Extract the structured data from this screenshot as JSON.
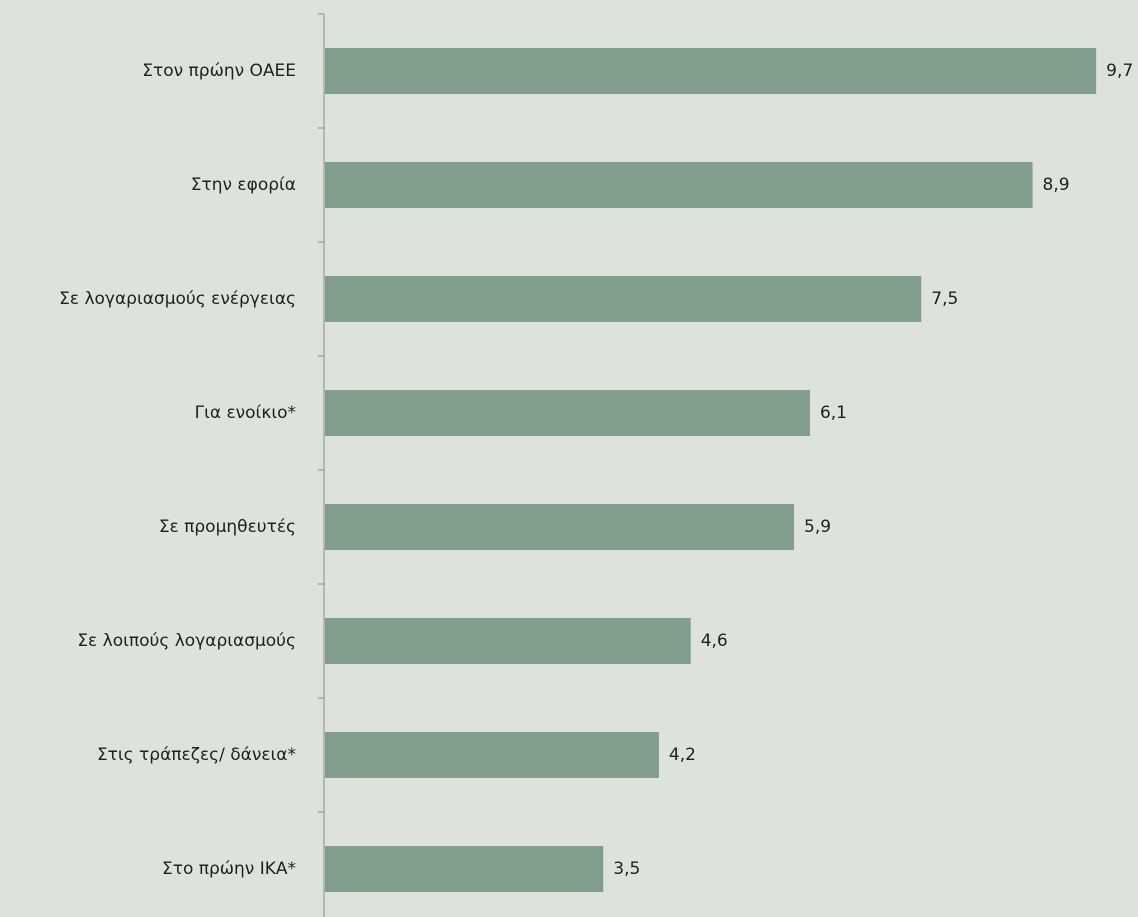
{
  "chart_data": {
    "type": "bar",
    "orientation": "horizontal",
    "categories": [
      "Στον πρώην ΟΑΕΕ",
      "Στην εφορία",
      "Σε λογαριασμούς  ενέργειας",
      "Για ενοίκιο*",
      "Σε προμηθευτές",
      "Σε λοιπούς λογαριασμούς",
      "Στις τράπεζες/ δάνεια*",
      "Στο πρώην ΙΚΑ*"
    ],
    "values": [
      9.7,
      8.9,
      7.5,
      6.1,
      5.9,
      4.6,
      4.2,
      3.5
    ],
    "value_labels": [
      "9,7",
      "8,9",
      "7,5",
      "6,1",
      "5,9",
      "4,6",
      "4,2",
      "3,5"
    ],
    "xlim": [
      0,
      10
    ],
    "grid": false,
    "colors": {
      "bar": "#809e8b",
      "axis": "#8a8a8a",
      "background": "#dde3dc",
      "text": "#1f1f1f"
    }
  }
}
